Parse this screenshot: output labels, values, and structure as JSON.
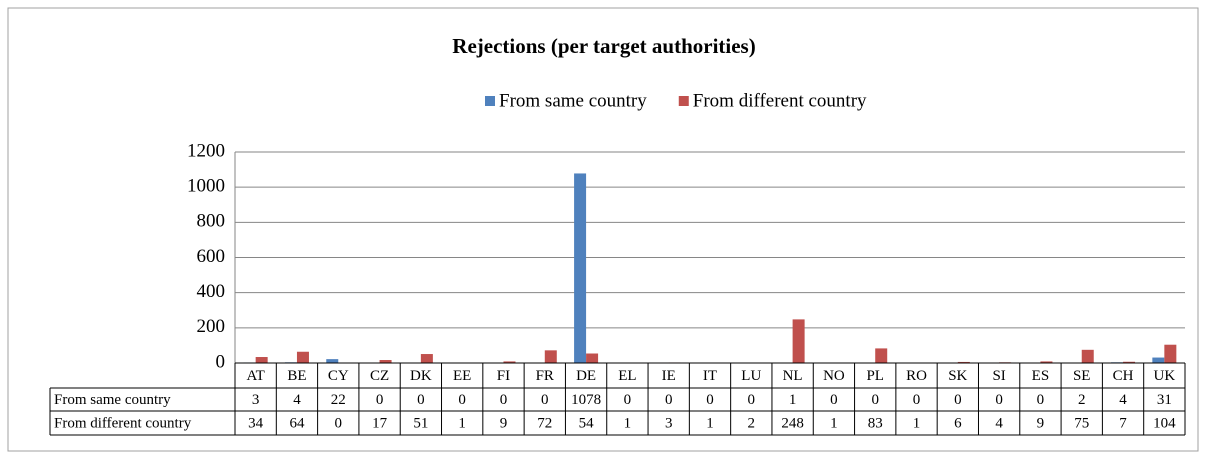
{
  "chart_data": {
    "type": "bar",
    "title": "Rejections (per target authorities)",
    "categories": [
      "AT",
      "BE",
      "CY",
      "CZ",
      "DK",
      "EE",
      "FI",
      "FR",
      "DE",
      "EL",
      "IE",
      "IT",
      "LU",
      "NL",
      "NO",
      "PL",
      "RO",
      "SK",
      "SI",
      "ES",
      "SE",
      "CH",
      "UK"
    ],
    "series": [
      {
        "name": "From same country",
        "color": "#4f81bd",
        "values": [
          3,
          4,
          22,
          0,
          0,
          0,
          0,
          0,
          1078,
          0,
          0,
          0,
          0,
          1,
          0,
          0,
          0,
          0,
          0,
          0,
          2,
          4,
          31
        ]
      },
      {
        "name": "From different country",
        "color": "#c0504d",
        "values": [
          34,
          64,
          0,
          17,
          51,
          1,
          9,
          72,
          54,
          1,
          3,
          1,
          2,
          248,
          1,
          83,
          1,
          6,
          4,
          9,
          75,
          7,
          104
        ]
      }
    ],
    "ylim": [
      0,
      1200
    ],
    "yticks": [
      0,
      200,
      400,
      600,
      800,
      1000,
      1200
    ],
    "grid": true,
    "legend": "top"
  }
}
